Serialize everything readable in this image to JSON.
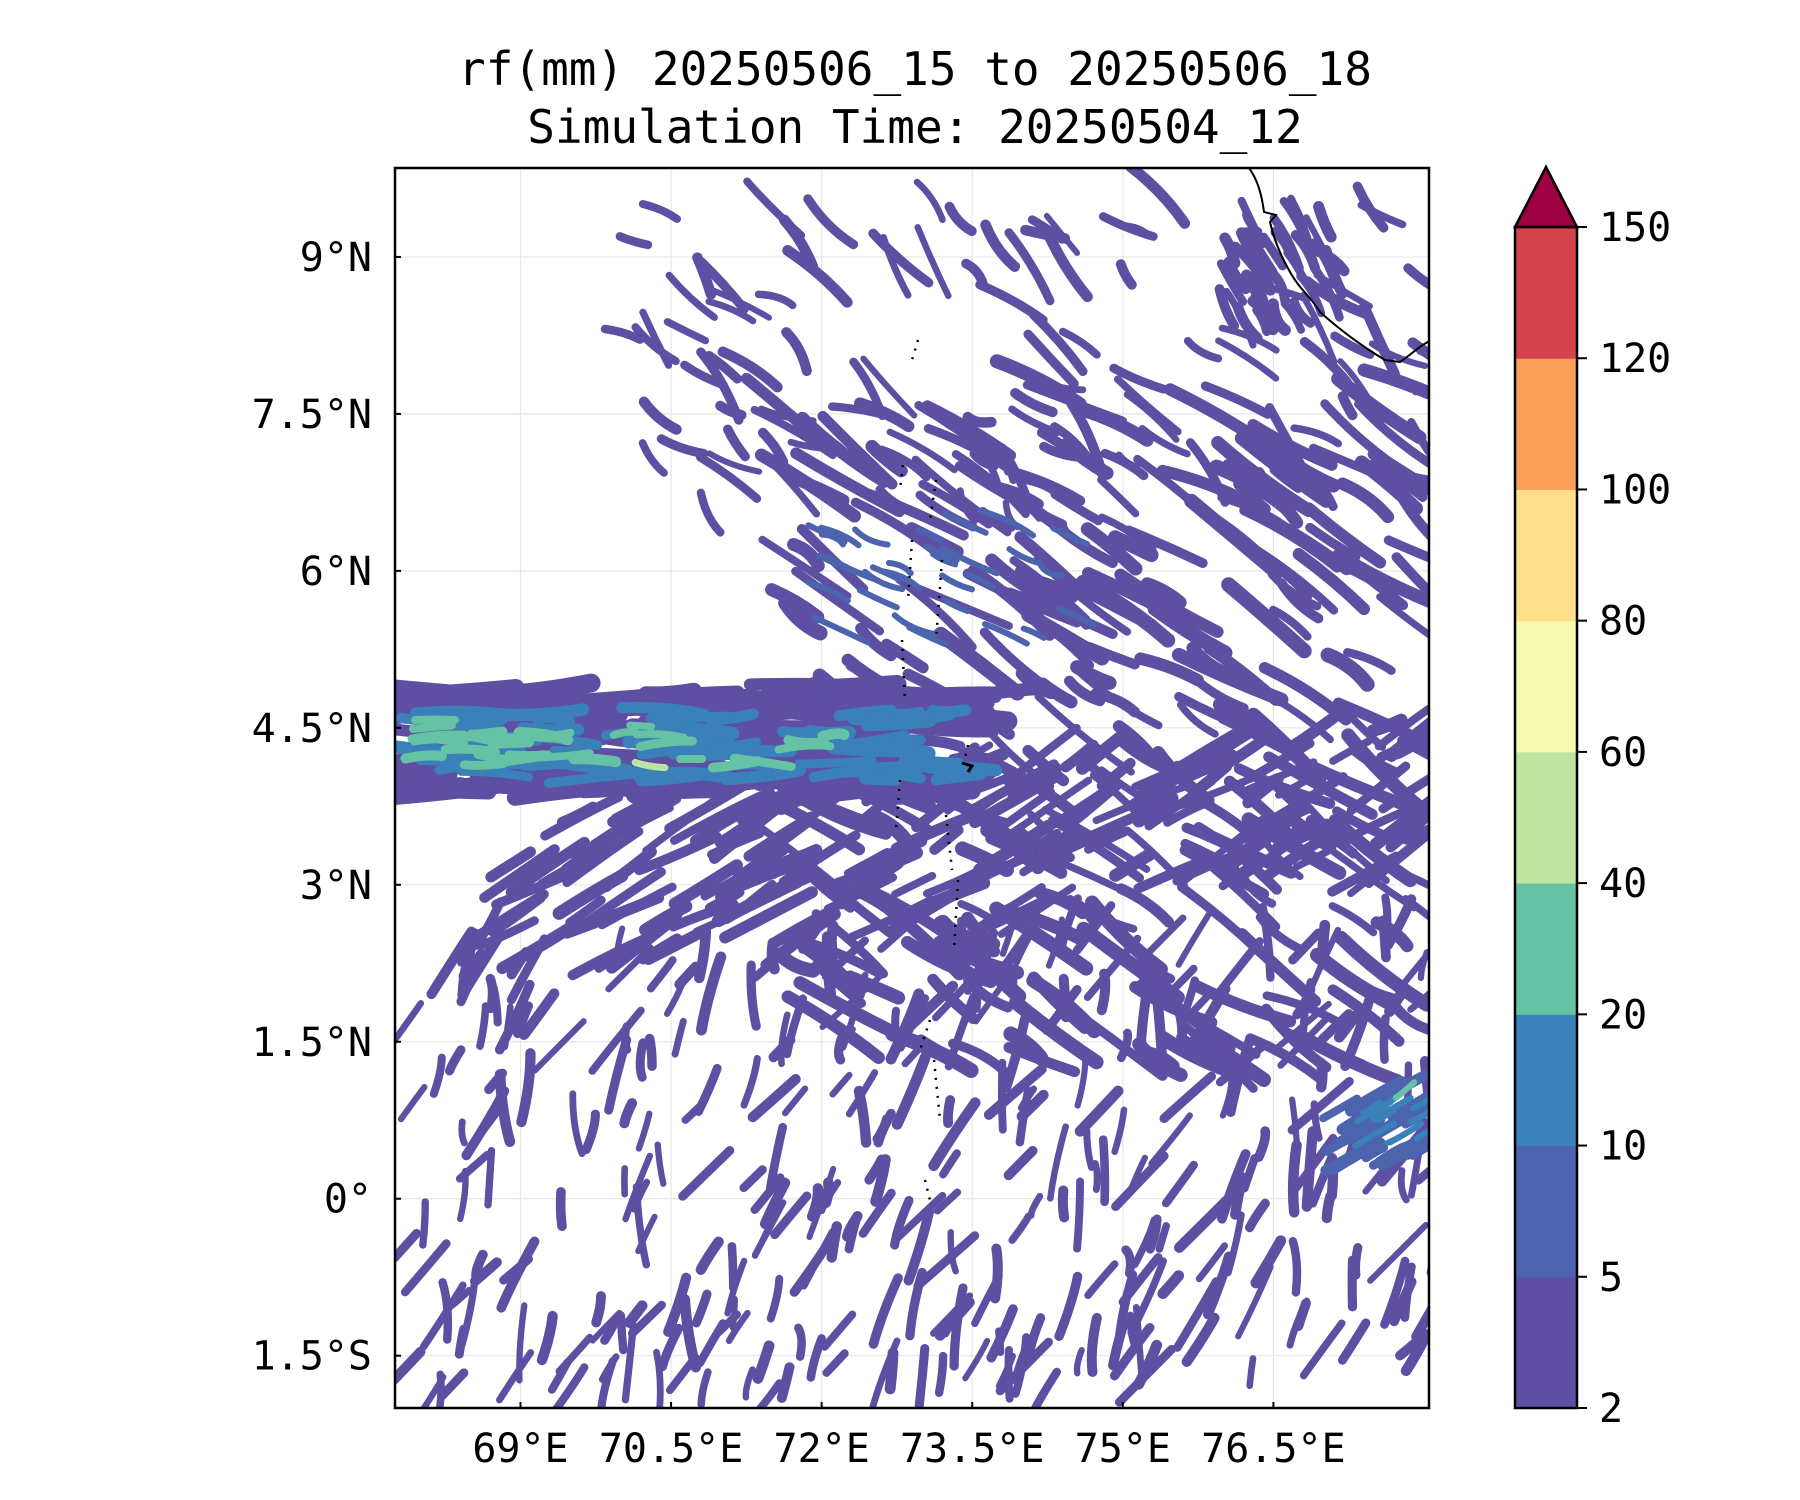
{
  "title": {
    "line1": "rf(mm) 20250506_15 to 20250506_18",
    "line2": "Simulation Time: 20250504_12"
  },
  "map": {
    "lon_range": [
      67.75,
      78.05
    ],
    "lat_range": [
      -2.0,
      9.85
    ],
    "lon_ticks": [
      {
        "value": 69.0,
        "label": "69°E"
      },
      {
        "value": 70.5,
        "label": "70.5°E"
      },
      {
        "value": 72.0,
        "label": "72°E"
      },
      {
        "value": 73.5,
        "label": "73.5°E"
      },
      {
        "value": 75.0,
        "label": "75°E"
      },
      {
        "value": 76.5,
        "label": "76.5°E"
      }
    ],
    "lat_ticks": [
      {
        "value": 9.0,
        "label": "9°N"
      },
      {
        "value": 7.5,
        "label": "7.5°N"
      },
      {
        "value": 6.0,
        "label": "6°N"
      },
      {
        "value": 4.5,
        "label": "4.5°N"
      },
      {
        "value": 3.0,
        "label": "3°N"
      },
      {
        "value": 1.5,
        "label": "1.5°N"
      },
      {
        "value": 0.0,
        "label": "0°"
      },
      {
        "value": -1.5,
        "label": "1.5°S"
      }
    ],
    "gridlines": true,
    "coastline": "southern tip of India (top-right), Maldives island chain (dotted, near 73.5°E)",
    "field": "rainfall accumulation, mm"
  },
  "colorbar": {
    "levels": [
      "2",
      "5",
      "10",
      "20",
      "40",
      "60",
      "80",
      "100",
      "120",
      "150"
    ],
    "colors": [
      "#5e4fa2",
      "#4c64ad",
      "#3a80b9",
      "#66c2a5",
      "#bde4a1",
      "#f4faaf",
      "#fedf8b",
      "#f99f58",
      "#d4424e"
    ],
    "extend_color": "#9e0142",
    "extend": "max",
    "placement": "right"
  },
  "colors": {
    "background": "#ffffff",
    "frame": "#000000",
    "grid": "#e6e6e6"
  }
}
